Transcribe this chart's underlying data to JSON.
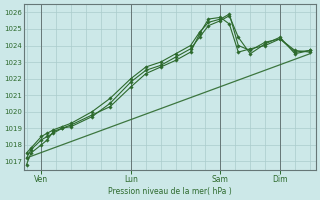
{
  "bg_color": "#cce8e8",
  "grid_color": "#aacccc",
  "line_color": "#2d6a2d",
  "marker_color": "#2d6a2d",
  "text_color": "#2d6a2d",
  "xlabel": "Pression niveau de la mer( hPa )",
  "ylim": [
    1016.5,
    1026.5
  ],
  "yticks": [
    1017,
    1018,
    1019,
    1020,
    1021,
    1022,
    1023,
    1024,
    1025,
    1026
  ],
  "xtick_labels": [
    "Ven",
    "Lun",
    "Sam",
    "Dim"
  ],
  "xtick_positions": [
    0.5,
    3.5,
    6.5,
    8.5
  ],
  "line1_x": [
    0.0,
    0.15,
    0.5,
    0.7,
    0.9,
    1.2,
    1.5,
    2.2,
    2.8,
    3.5,
    4.0,
    4.5,
    5.0,
    5.5,
    5.8,
    6.1,
    6.5,
    6.8,
    7.1,
    7.5,
    8.0,
    8.5,
    9.0,
    9.5
  ],
  "line1_y": [
    1016.8,
    1017.5,
    1018.0,
    1018.3,
    1018.8,
    1019.0,
    1019.2,
    1019.8,
    1020.3,
    1021.5,
    1022.3,
    1022.7,
    1023.1,
    1023.6,
    1024.7,
    1025.6,
    1025.7,
    1025.3,
    1023.6,
    1023.8,
    1024.0,
    1024.4,
    1023.7,
    1023.6
  ],
  "line2_x": [
    0.0,
    0.15,
    0.5,
    0.7,
    0.9,
    1.2,
    1.5,
    2.2,
    2.8,
    3.5,
    4.0,
    4.5,
    5.0,
    5.5,
    5.8,
    6.1,
    6.5,
    6.8,
    7.1,
    7.5,
    8.0,
    8.5,
    9.0,
    9.5
  ],
  "line2_y": [
    1017.2,
    1017.7,
    1018.3,
    1018.5,
    1018.7,
    1019.0,
    1019.1,
    1019.7,
    1020.5,
    1021.8,
    1022.5,
    1022.8,
    1023.3,
    1023.8,
    1024.5,
    1025.2,
    1025.5,
    1025.8,
    1024.5,
    1023.5,
    1024.1,
    1024.5,
    1023.5,
    1023.7
  ],
  "line3_x": [
    0.0,
    0.15,
    0.5,
    0.7,
    0.9,
    1.2,
    1.5,
    2.2,
    2.8,
    3.5,
    4.0,
    4.5,
    5.0,
    5.5,
    5.8,
    6.1,
    6.5,
    6.8,
    7.1,
    7.5,
    8.0,
    8.5,
    9.0,
    9.5
  ],
  "line3_y": [
    1017.5,
    1017.8,
    1018.5,
    1018.7,
    1018.9,
    1019.1,
    1019.3,
    1020.0,
    1020.8,
    1022.0,
    1022.7,
    1023.0,
    1023.5,
    1024.0,
    1024.8,
    1025.4,
    1025.6,
    1025.9,
    1024.0,
    1023.7,
    1024.2,
    1024.4,
    1023.6,
    1023.7
  ],
  "trend_x": [
    0.0,
    9.5
  ],
  "trend_y": [
    1017.2,
    1023.5
  ],
  "vline_positions": [
    0.5,
    3.5,
    6.5,
    8.5
  ],
  "xlim": [
    -0.1,
    9.7
  ]
}
